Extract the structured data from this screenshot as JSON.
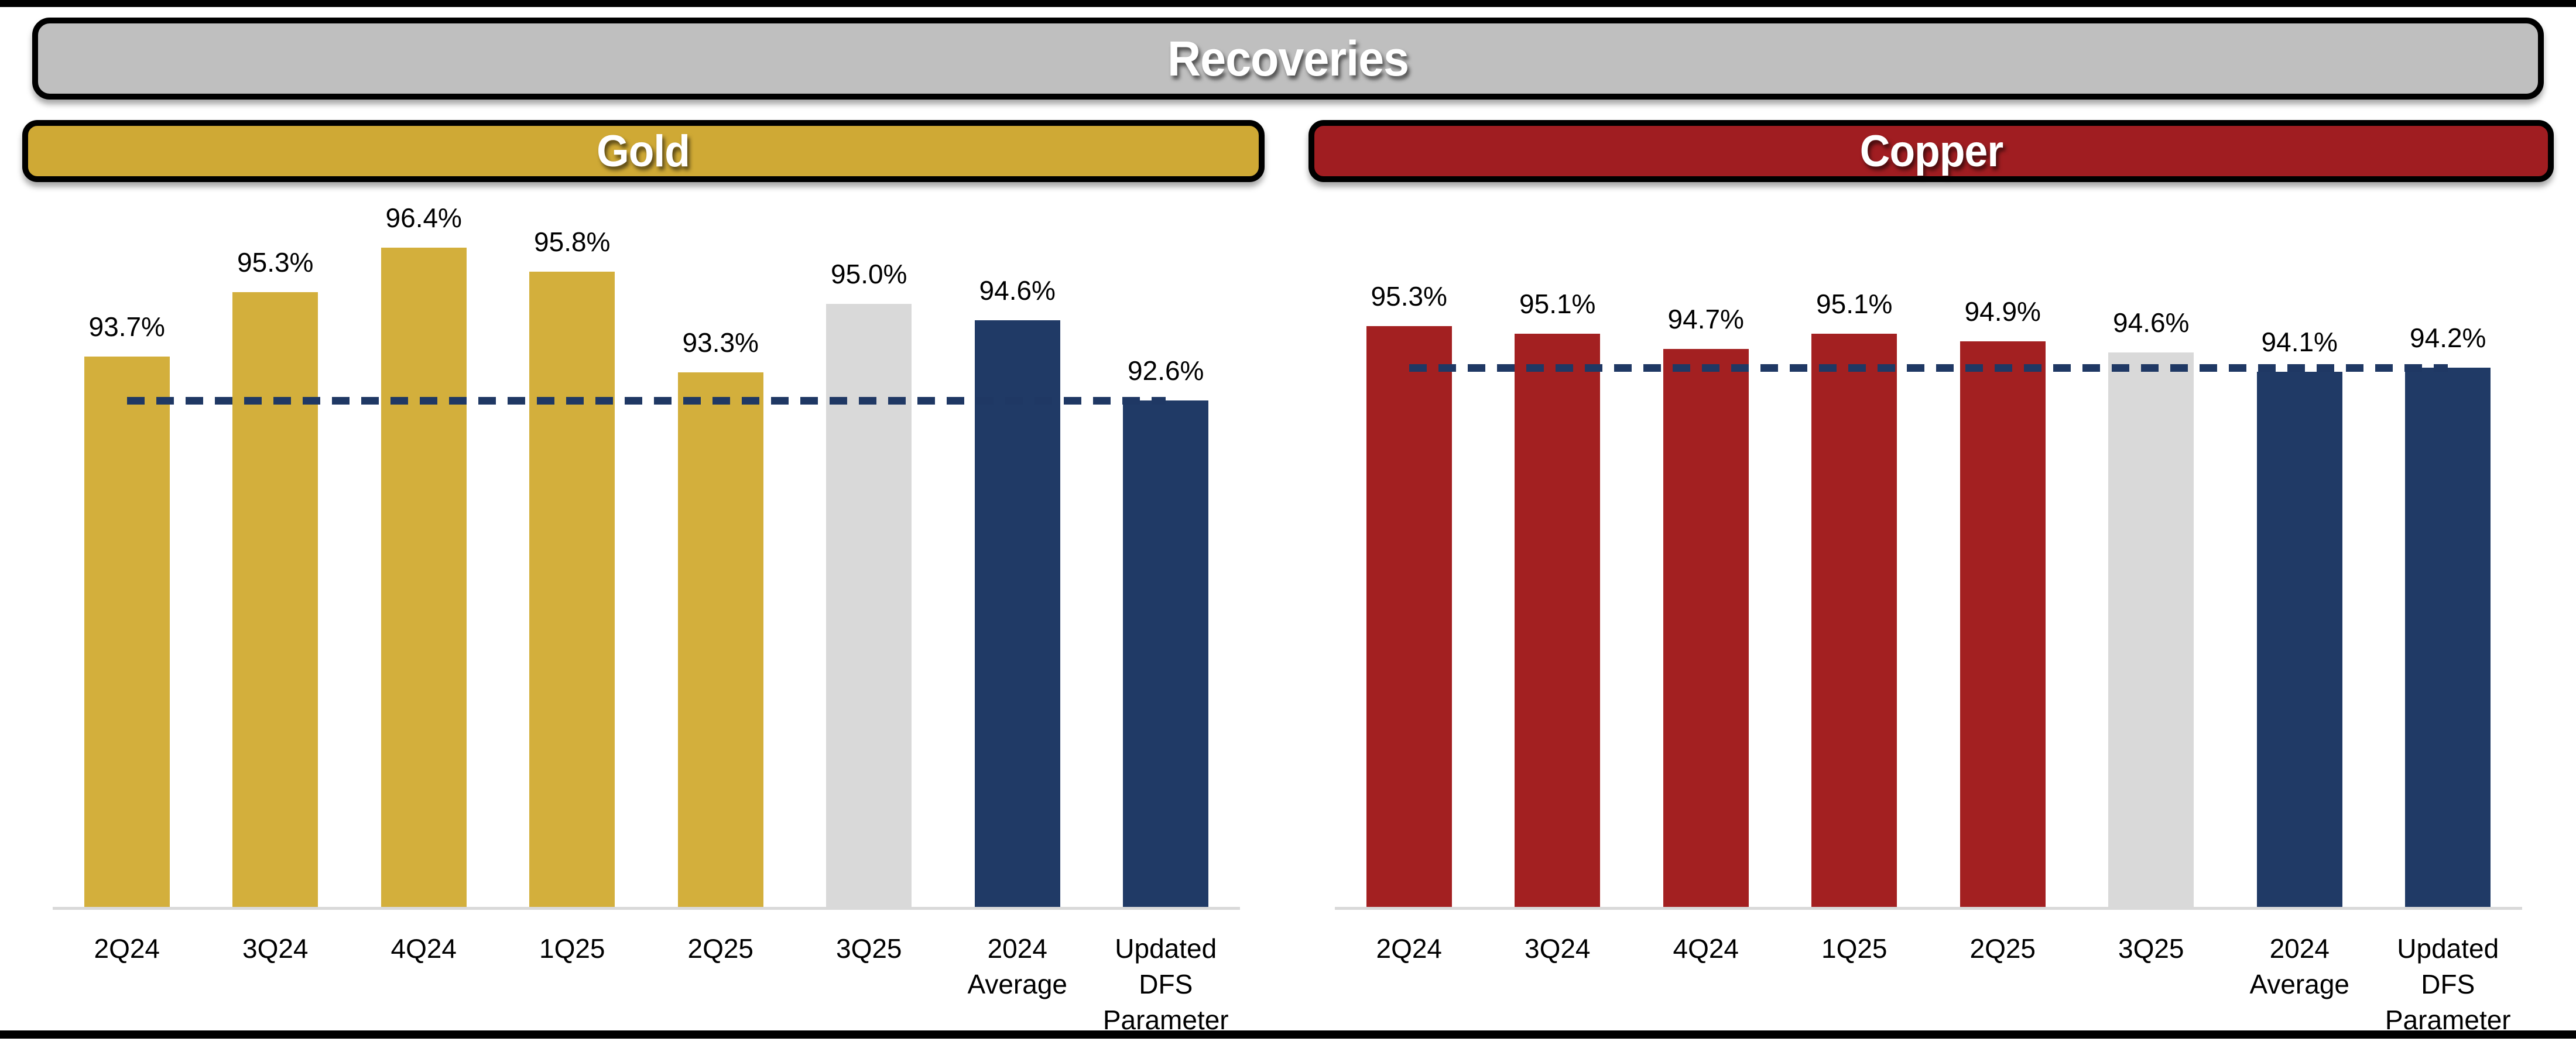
{
  "title_bar": {
    "label": "Recoveries"
  },
  "colors": {
    "title_banner_fill": "#BFBFBF",
    "gold_banner_fill": "#CFA935",
    "copper_banner_fill": "#A01D21",
    "banner_border": "#000000",
    "gold_bar": "#D3AF3C",
    "copper_bar": "#A32021",
    "forecast_gray_bar": "#D9D9D9",
    "average_navy_bar": "#203A66",
    "reference_line": "#1F3864",
    "axis_line": "#D9D9D9"
  },
  "chart_data": [
    {
      "type": "bar",
      "title": "Gold",
      "categories": [
        "2Q24",
        "3Q24",
        "4Q24",
        "1Q25",
        "2Q25",
        "3Q25",
        "2024\nAverage",
        "Updated\nDFS\nParameter"
      ],
      "values": [
        93.7,
        95.3,
        96.4,
        95.8,
        93.3,
        95.0,
        94.6,
        92.6
      ],
      "labels": [
        "93.7%",
        "95.3%",
        "96.4%",
        "95.8%",
        "93.3%",
        "95.0%",
        "94.6%",
        "92.6%"
      ],
      "bar_colors": [
        "#D3AF3C",
        "#D3AF3C",
        "#D3AF3C",
        "#D3AF3C",
        "#D3AF3C",
        "#D9D9D9",
        "#203A66",
        "#203A66"
      ],
      "reference_line": {
        "value": 92.6,
        "style": "dashed",
        "color": "#1F3864"
      },
      "xlabel": "",
      "ylabel": "",
      "ylim": [
        80,
        97
      ],
      "grid": false,
      "legend": "none"
    },
    {
      "type": "bar",
      "title": "Copper",
      "categories": [
        "2Q24",
        "3Q24",
        "4Q24",
        "1Q25",
        "2Q25",
        "3Q25",
        "2024\nAverage",
        "Updated\nDFS\nParameter"
      ],
      "values": [
        95.3,
        95.1,
        94.7,
        95.1,
        94.9,
        94.6,
        94.1,
        94.2
      ],
      "labels": [
        "95.3%",
        "95.1%",
        "94.7%",
        "95.1%",
        "94.9%",
        "94.6%",
        "94.1%",
        "94.2%"
      ],
      "bar_colors": [
        "#A32021",
        "#A32021",
        "#A32021",
        "#A32021",
        "#A32021",
        "#D9D9D9",
        "#203A66",
        "#203A66"
      ],
      "reference_line": {
        "value": 94.2,
        "style": "dashed",
        "color": "#1F3864"
      },
      "xlabel": "",
      "ylabel": "",
      "ylim": [
        80,
        98
      ],
      "grid": false,
      "legend": "none"
    }
  ]
}
